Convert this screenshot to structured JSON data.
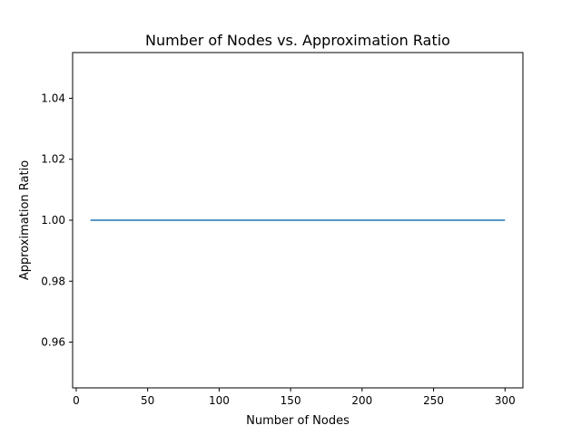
{
  "chart_data": {
    "type": "line",
    "title": "Number of Nodes vs. Approximation Ratio",
    "xlabel": "Number of Nodes",
    "ylabel": "Approximation Ratio",
    "xlim": [
      -2.5,
      312.5
    ],
    "ylim": [
      0.945,
      1.055
    ],
    "xticks": [
      0,
      50,
      100,
      150,
      200,
      250,
      300
    ],
    "yticks": [
      0.96,
      0.98,
      1.0,
      1.02,
      1.04
    ],
    "ytick_labels": [
      "0.96",
      "0.98",
      "1.00",
      "1.02",
      "1.04"
    ],
    "grid": false,
    "series": [
      {
        "color": "#1f77b4",
        "x": [
          10,
          300
        ],
        "y": [
          1.0,
          1.0
        ]
      }
    ]
  }
}
